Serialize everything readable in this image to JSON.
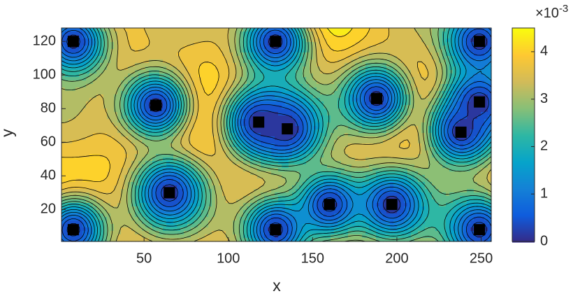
{
  "chart_data": {
    "type": "contour",
    "xlabel": "x",
    "ylabel": "y",
    "xlim": [
      1,
      256
    ],
    "ylim": [
      1,
      128
    ],
    "xticks": [
      50,
      100,
      150,
      200,
      250
    ],
    "yticks": [
      20,
      40,
      60,
      80,
      100,
      120
    ],
    "markers": {
      "x": [
        8,
        8,
        57,
        65,
        118,
        135,
        128,
        128,
        160,
        197,
        188,
        249,
        249,
        249,
        238
      ],
      "y": [
        8,
        120,
        82,
        30,
        72,
        68,
        8,
        120,
        23,
        23,
        86,
        120,
        8,
        84,
        66
      ],
      "color": "#000000"
    },
    "clim": [
      0,
      4.5
    ],
    "cticks": [
      0,
      1,
      2,
      3,
      4
    ],
    "colorbar_multiplier": {
      "base": "×10",
      "exponent": "-3"
    }
  }
}
